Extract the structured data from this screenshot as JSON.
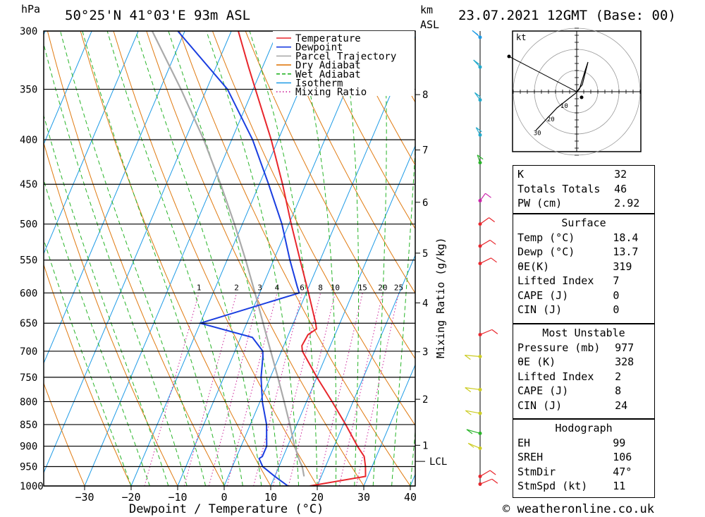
{
  "header": {
    "pressure_unit": "hPa",
    "location": "50°25'N  41°03'E  93m  ASL",
    "km_label": "km",
    "asl_label": "ASL",
    "datetime": "23.07.2021  12GMT  (Base: 00)"
  },
  "footer": {
    "credit": "© weatheronline.co.uk"
  },
  "chart_data": {
    "type": "line",
    "subtype": "skew-T log-P sounding",
    "xlabel": "Dewpoint / Temperature (°C)",
    "ylabel": "hPa",
    "mixing_ratio_label": "Mixing Ratio (g/kg)",
    "pressure_levels": [
      300,
      350,
      400,
      450,
      500,
      550,
      600,
      650,
      700,
      750,
      800,
      850,
      900,
      950,
      1000
    ],
    "x_ticks": [
      -30,
      -20,
      -10,
      0,
      10,
      20,
      30,
      40
    ],
    "xlim": [
      -40,
      40
    ],
    "ylim": [
      1000,
      300
    ],
    "km_ticks": [
      {
        "km": "8",
        "p": 355
      },
      {
        "km": "7",
        "p": 411
      },
      {
        "km": "6",
        "p": 472
      },
      {
        "km": "5",
        "p": 540
      },
      {
        "km": "4",
        "p": 616
      },
      {
        "km": "3",
        "p": 701
      },
      {
        "km": "2",
        "p": 795
      },
      {
        "km": "1",
        "p": 898
      }
    ],
    "mixing_ratio_values": [
      "1",
      "2",
      "3",
      "4",
      "6",
      "8",
      "10",
      "15",
      "20",
      "25"
    ],
    "lcl": {
      "label": "LCL",
      "p": 937
    },
    "legend": [
      {
        "name": "Temperature",
        "color": "#e8262c",
        "style": "solid"
      },
      {
        "name": "Dewpoint",
        "color": "#1a3ee0",
        "style": "solid"
      },
      {
        "name": "Parcel Trajectory",
        "color": "#aaaaaa",
        "style": "solid"
      },
      {
        "name": "Dry Adiabat",
        "color": "#e07a10",
        "style": "solid"
      },
      {
        "name": "Wet Adiabat",
        "color": "#28b428",
        "style": "dashed"
      },
      {
        "name": "Isotherm",
        "color": "#1e9be6",
        "style": "solid"
      },
      {
        "name": "Mixing Ratio",
        "color": "#cc2299",
        "style": "dotted"
      }
    ],
    "series": [
      {
        "name": "Temperature",
        "points": [
          [
            1000,
            18.4
          ],
          [
            975,
            29.5
          ],
          [
            950,
            28.6
          ],
          [
            925,
            27.4
          ],
          [
            900,
            25.0
          ],
          [
            850,
            20.5
          ],
          [
            800,
            15.5
          ],
          [
            750,
            10.0
          ],
          [
            700,
            4.5
          ],
          [
            690,
            3.9
          ],
          [
            670,
            4.2
          ],
          [
            660,
            5.5
          ],
          [
            650,
            4.8
          ],
          [
            600,
            0.5
          ],
          [
            550,
            -4.3
          ],
          [
            500,
            -9.5
          ],
          [
            450,
            -15.0
          ],
          [
            400,
            -21.5
          ],
          [
            350,
            -29.5
          ],
          [
            330,
            -33.0
          ],
          [
            300,
            -38.5
          ]
        ]
      },
      {
        "name": "Dewpoint",
        "points": [
          [
            1000,
            13.7
          ],
          [
            975,
            10.0
          ],
          [
            950,
            6.5
          ],
          [
            930,
            5.0
          ],
          [
            925,
            5.5
          ],
          [
            900,
            5.5
          ],
          [
            850,
            3.5
          ],
          [
            800,
            0.5
          ],
          [
            750,
            -2.0
          ],
          [
            710,
            -3.5
          ],
          [
            700,
            -4.0
          ],
          [
            675,
            -7.5
          ],
          [
            650,
            -20.0
          ],
          [
            600,
            -1.5
          ],
          [
            590,
            -2.5
          ],
          [
            550,
            -6.5
          ],
          [
            500,
            -11.5
          ],
          [
            450,
            -18.0
          ],
          [
            400,
            -25.5
          ],
          [
            350,
            -35.5
          ],
          [
            300,
            -51.5
          ]
        ]
      },
      {
        "name": "Parcel Trajectory",
        "points": [
          [
            975,
            16.3
          ],
          [
            950,
            15.0
          ],
          [
            937,
            14.0
          ],
          [
            900,
            11.5
          ],
          [
            850,
            8.5
          ],
          [
            800,
            5.2
          ],
          [
            750,
            1.6
          ],
          [
            700,
            -2.3
          ],
          [
            650,
            -6.5
          ],
          [
            600,
            -11.0
          ],
          [
            550,
            -16.0
          ],
          [
            500,
            -21.7
          ],
          [
            450,
            -28.3
          ],
          [
            400,
            -36.0
          ],
          [
            350,
            -45.5
          ],
          [
            300,
            -57.0
          ]
        ]
      }
    ],
    "grid": true
  },
  "hodograph": {
    "unit_label": "kt",
    "ring_labels": [
      "10",
      "20",
      "30"
    ]
  },
  "indices": {
    "general": [
      {
        "label": "K",
        "value": "32"
      },
      {
        "label": "Totals Totals",
        "value": "46"
      },
      {
        "label": "PW (cm)",
        "value": "2.92"
      }
    ],
    "surface": {
      "title": "Surface",
      "rows": [
        {
          "label": "Temp (°C)",
          "value": "18.4"
        },
        {
          "label": "Dewp (°C)",
          "value": "13.7"
        },
        {
          "label": "θE(K)",
          "value": "319"
        },
        {
          "label": "Lifted Index",
          "value": "7"
        },
        {
          "label": "CAPE (J)",
          "value": "0"
        },
        {
          "label": "CIN (J)",
          "value": "0"
        }
      ]
    },
    "most_unstable": {
      "title": "Most Unstable",
      "rows": [
        {
          "label": "Pressure (mb)",
          "value": "977"
        },
        {
          "label": "θE (K)",
          "value": "328"
        },
        {
          "label": "Lifted Index",
          "value": "2"
        },
        {
          "label": "CAPE (J)",
          "value": "8"
        },
        {
          "label": "CIN (J)",
          "value": "24"
        }
      ]
    },
    "hodograph_stats": {
      "title": "Hodograph",
      "rows": [
        {
          "label": "EH",
          "value": "99"
        },
        {
          "label": "SREH",
          "value": "106"
        },
        {
          "label": "StmDir",
          "value": "47°"
        },
        {
          "label": "StmSpd (kt)",
          "value": "11"
        }
      ]
    }
  },
  "colors": {
    "temperature": "#e8262c",
    "dewpoint": "#1a3ee0",
    "parcel": "#aaaaaa",
    "dry_adiabat": "#e07a10",
    "wet_adiabat": "#28b428",
    "isotherm": "#1e9be6",
    "mixing_ratio": "#cc2299"
  }
}
